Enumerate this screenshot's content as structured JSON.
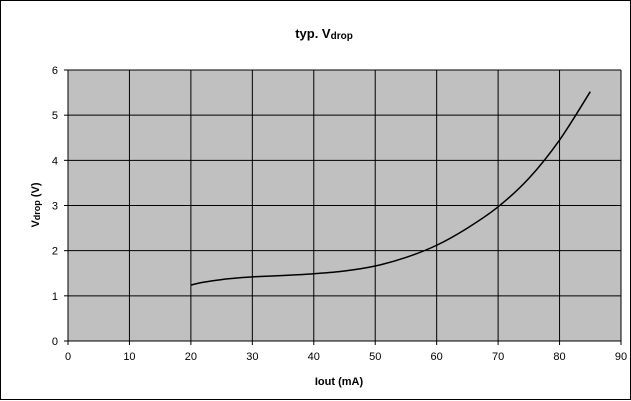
{
  "chart_data": {
    "type": "line",
    "title": {
      "main": "typ. V",
      "sub": "drop"
    },
    "xlabel": "Iout (mA)",
    "ylabel": {
      "main": "V",
      "sub": "drop",
      "rest": " (V)"
    },
    "xlim": [
      0,
      90
    ],
    "ylim": [
      0,
      6
    ],
    "xticks": [
      0,
      10,
      20,
      30,
      40,
      50,
      60,
      70,
      80,
      90
    ],
    "yticks": [
      0,
      1,
      2,
      3,
      4,
      5,
      6
    ],
    "grid": true,
    "legend": "none",
    "series": [
      {
        "x": [
          20,
          22,
          25,
          28,
          30,
          35,
          40,
          45,
          50,
          55,
          60,
          65,
          70,
          75,
          80,
          85
        ],
        "y": [
          1.24,
          1.3,
          1.36,
          1.4,
          1.42,
          1.45,
          1.49,
          1.55,
          1.66,
          1.85,
          2.12,
          2.5,
          2.97,
          3.6,
          4.45,
          5.52
        ]
      }
    ],
    "colors": {
      "plot_background": "#c0c0c0",
      "grid": "#000000",
      "line": "#000000"
    }
  }
}
